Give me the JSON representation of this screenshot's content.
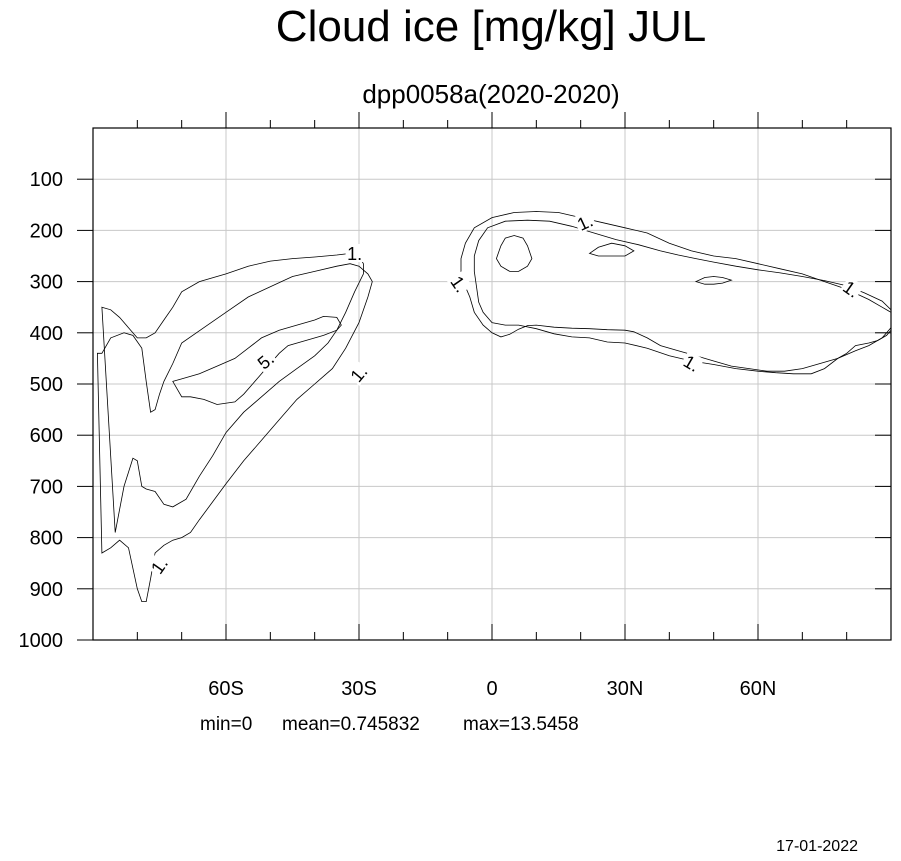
{
  "chart_data": {
    "type": "contour",
    "title": "Cloud ice [mg/kg] JUL",
    "subtitle": "dpp0058a(2020-2020)",
    "xlabel": "",
    "ylabel": "",
    "x_axis": {
      "range": [
        -90,
        90
      ],
      "ticks": [
        {
          "value": -60,
          "label": "60S"
        },
        {
          "value": -30,
          "label": "30S"
        },
        {
          "value": 0,
          "label": "0"
        },
        {
          "value": 30,
          "label": "30N"
        },
        {
          "value": 60,
          "label": "60N"
        }
      ],
      "minor_ticks": [
        -80,
        -70,
        -50,
        -40,
        -20,
        -10,
        10,
        20,
        40,
        50,
        70,
        80
      ]
    },
    "y_axis": {
      "range": [
        0,
        1000
      ],
      "reversed": true,
      "ticks": [
        100,
        200,
        300,
        400,
        500,
        600,
        700,
        800,
        900,
        1000
      ],
      "tick_labels": [
        "100",
        "200",
        "300",
        "400",
        "500",
        "600",
        "700",
        "800",
        "900",
        "1000"
      ]
    },
    "grid": true,
    "stats": {
      "min": "0",
      "mean": "0.745832",
      "max": "13.5458",
      "text_min": "min=0",
      "text_mean": "mean=0.745832",
      "text_max": "max=13.5458"
    },
    "contours": [
      {
        "name": "sh-outer",
        "points": [
          [
            -89,
            440
          ],
          [
            -88,
            440
          ],
          [
            -86,
            410
          ],
          [
            -83,
            400
          ],
          [
            -81,
            405
          ],
          [
            -79,
            430
          ],
          [
            -78,
            495
          ],
          [
            -77,
            555
          ],
          [
            -76,
            550
          ],
          [
            -75,
            520
          ],
          [
            -74,
            495
          ],
          [
            -72,
            460
          ],
          [
            -70,
            420
          ],
          [
            -65,
            390
          ],
          [
            -60,
            360
          ],
          [
            -55,
            330
          ],
          [
            -50,
            310
          ],
          [
            -45,
            290
          ],
          [
            -40,
            280
          ],
          [
            -35,
            270
          ],
          [
            -32,
            265
          ],
          [
            -30,
            270
          ],
          [
            -28,
            285
          ],
          [
            -27,
            300
          ],
          [
            -28,
            330
          ],
          [
            -30,
            380
          ],
          [
            -33,
            430
          ],
          [
            -36,
            470
          ],
          [
            -40,
            500
          ],
          [
            -44,
            530
          ],
          [
            -48,
            570
          ],
          [
            -52,
            610
          ],
          [
            -56,
            650
          ],
          [
            -60,
            695
          ],
          [
            -63,
            730
          ],
          [
            -66,
            765
          ],
          [
            -68,
            790
          ],
          [
            -70,
            800
          ],
          [
            -72,
            805
          ],
          [
            -74,
            815
          ],
          [
            -76,
            830
          ],
          [
            -77,
            880
          ],
          [
            -78,
            925
          ],
          [
            -79,
            925
          ],
          [
            -80,
            900
          ],
          [
            -81,
            860
          ],
          [
            -82,
            820
          ],
          [
            -84,
            805
          ],
          [
            -86,
            820
          ],
          [
            -88,
            830
          ]
        ]
      },
      {
        "name": "sh-inner-1",
        "points": [
          [
            -88,
            350
          ],
          [
            -86,
            355
          ],
          [
            -84,
            370
          ],
          [
            -82,
            390
          ],
          [
            -80,
            410
          ],
          [
            -78,
            410
          ],
          [
            -76,
            400
          ],
          [
            -74,
            375
          ],
          [
            -72,
            350
          ],
          [
            -70,
            320
          ],
          [
            -66,
            300
          ],
          [
            -60,
            285
          ],
          [
            -55,
            270
          ],
          [
            -50,
            260
          ],
          [
            -45,
            255
          ],
          [
            -40,
            252
          ],
          [
            -35,
            248
          ],
          [
            -32,
            245
          ],
          [
            -30,
            250
          ],
          [
            -29,
            265
          ],
          [
            -29,
            285
          ],
          [
            -31,
            320
          ],
          [
            -33,
            360
          ],
          [
            -35,
            395
          ],
          [
            -37,
            420
          ],
          [
            -40,
            445
          ],
          [
            -44,
            470
          ],
          [
            -48,
            495
          ],
          [
            -52,
            525
          ],
          [
            -56,
            555
          ],
          [
            -60,
            595
          ],
          [
            -63,
            640
          ],
          [
            -66,
            680
          ],
          [
            -69,
            725
          ],
          [
            -72,
            740
          ],
          [
            -74,
            735
          ],
          [
            -76,
            710
          ],
          [
            -78,
            705
          ],
          [
            -79,
            700
          ],
          [
            -80,
            650
          ],
          [
            -81,
            645
          ],
          [
            -83,
            700
          ],
          [
            -85,
            790
          ]
        ]
      },
      {
        "name": "sh-inner-5",
        "points": [
          [
            -72,
            495
          ],
          [
            -70,
            490
          ],
          [
            -66,
            480
          ],
          [
            -62,
            465
          ],
          [
            -58,
            450
          ],
          [
            -55,
            430
          ],
          [
            -52,
            410
          ],
          [
            -48,
            395
          ],
          [
            -44,
            385
          ],
          [
            -40,
            375
          ],
          [
            -38,
            368
          ],
          [
            -35,
            370
          ],
          [
            -34,
            385
          ],
          [
            -35,
            395
          ],
          [
            -38,
            405
          ],
          [
            -42,
            415
          ],
          [
            -46,
            425
          ],
          [
            -48,
            440
          ],
          [
            -50,
            460
          ],
          [
            -52,
            480
          ],
          [
            -54,
            500
          ],
          [
            -56,
            520
          ],
          [
            -58,
            535
          ],
          [
            -62,
            540
          ],
          [
            -65,
            530
          ],
          [
            -68,
            525
          ],
          [
            -70,
            525
          ],
          [
            -71,
            510
          ]
        ]
      },
      {
        "name": "nh-outer",
        "points": [
          [
            -7,
            300
          ],
          [
            -7,
            255
          ],
          [
            -6,
            225
          ],
          [
            -4,
            195
          ],
          [
            0,
            175
          ],
          [
            5,
            165
          ],
          [
            10,
            163
          ],
          [
            15,
            165
          ],
          [
            20,
            175
          ],
          [
            25,
            185
          ],
          [
            30,
            195
          ],
          [
            35,
            205
          ],
          [
            40,
            225
          ],
          [
            45,
            240
          ],
          [
            50,
            250
          ],
          [
            55,
            255
          ],
          [
            60,
            265
          ],
          [
            65,
            275
          ],
          [
            70,
            285
          ],
          [
            75,
            300
          ],
          [
            80,
            315
          ],
          [
            85,
            335
          ],
          [
            88,
            350
          ],
          [
            90,
            360
          ],
          [
            90,
            395
          ],
          [
            89,
            405
          ],
          [
            87,
            415
          ],
          [
            85,
            420
          ],
          [
            82,
            425
          ],
          [
            80,
            440
          ],
          [
            78,
            450
          ],
          [
            74,
            460
          ],
          [
            70,
            470
          ],
          [
            66,
            475
          ],
          [
            62,
            475
          ],
          [
            58,
            470
          ],
          [
            54,
            465
          ],
          [
            50,
            455
          ],
          [
            46,
            445
          ],
          [
            42,
            435
          ],
          [
            38,
            425
          ],
          [
            35,
            410
          ],
          [
            32,
            398
          ],
          [
            30,
            395
          ],
          [
            26,
            394
          ],
          [
            22,
            392
          ],
          [
            18,
            391
          ],
          [
            14,
            389
          ],
          [
            10,
            385
          ],
          [
            8,
            386
          ],
          [
            6,
            393
          ],
          [
            4,
            403
          ],
          [
            2,
            408
          ],
          [
            0,
            400
          ],
          [
            -2,
            385
          ],
          [
            -4,
            360
          ],
          [
            -5,
            330
          ],
          [
            -6,
            310
          ]
        ]
      },
      {
        "name": "nh-inner",
        "points": [
          [
            -4,
            280
          ],
          [
            -4,
            250
          ],
          [
            -3,
            220
          ],
          [
            -1,
            195
          ],
          [
            3,
            182
          ],
          [
            8,
            180
          ],
          [
            13,
            182
          ],
          [
            18,
            192
          ],
          [
            23,
            205
          ],
          [
            28,
            218
          ],
          [
            33,
            228
          ],
          [
            38,
            240
          ],
          [
            42,
            248
          ],
          [
            46,
            255
          ],
          [
            50,
            262
          ],
          [
            55,
            270
          ],
          [
            60,
            277
          ],
          [
            65,
            283
          ],
          [
            70,
            290
          ],
          [
            75,
            298
          ],
          [
            80,
            308
          ],
          [
            84,
            322
          ],
          [
            88,
            338
          ],
          [
            90,
            355
          ],
          [
            90,
            390
          ],
          [
            88,
            410
          ],
          [
            85,
            425
          ],
          [
            82,
            435
          ],
          [
            78,
            450
          ],
          [
            75,
            470
          ],
          [
            72,
            480
          ],
          [
            68,
            480
          ],
          [
            64,
            478
          ],
          [
            60,
            475
          ],
          [
            55,
            470
          ],
          [
            50,
            462
          ],
          [
            45,
            455
          ],
          [
            40,
            445
          ],
          [
            35,
            430
          ],
          [
            30,
            420
          ],
          [
            26,
            418
          ],
          [
            22,
            410
          ],
          [
            18,
            408
          ],
          [
            14,
            402
          ],
          [
            10,
            392
          ],
          [
            6,
            385
          ],
          [
            3,
            385
          ],
          [
            0,
            380
          ],
          [
            -2,
            360
          ],
          [
            -3,
            340
          ],
          [
            -3.5,
            310
          ]
        ]
      },
      {
        "name": "nh-small-center",
        "points": [
          [
            1,
            255
          ],
          [
            2,
            230
          ],
          [
            3,
            215
          ],
          [
            5,
            210
          ],
          [
            7,
            215
          ],
          [
            8,
            230
          ],
          [
            9,
            255
          ],
          [
            8,
            270
          ],
          [
            6,
            280
          ],
          [
            4,
            280
          ],
          [
            2,
            270
          ]
        ]
      },
      {
        "name": "nh-small-right",
        "points": [
          [
            22,
            245
          ],
          [
            24,
            233
          ],
          [
            27,
            225
          ],
          [
            30,
            230
          ],
          [
            32,
            240
          ],
          [
            30,
            250
          ],
          [
            27,
            250
          ],
          [
            24,
            250
          ]
        ]
      },
      {
        "name": "nh-small-far",
        "points": [
          [
            46,
            300
          ],
          [
            48,
            292
          ],
          [
            50,
            290
          ],
          [
            52,
            292
          ],
          [
            54,
            297
          ],
          [
            52,
            303
          ],
          [
            50,
            305
          ],
          [
            48,
            305
          ]
        ]
      }
    ],
    "contour_labels": [
      {
        "text": "1.",
        "x": -31,
        "y": 246,
        "rotate": 0
      },
      {
        "text": "5.",
        "x": -51,
        "y": 455,
        "rotate": -40
      },
      {
        "text": "1.",
        "x": -30,
        "y": 480,
        "rotate": -50
      },
      {
        "text": "1.",
        "x": -75,
        "y": 855,
        "rotate": -55
      },
      {
        "text": "1.",
        "x": -7.5,
        "y": 305,
        "rotate": 55
      },
      {
        "text": "1.",
        "x": 21,
        "y": 185,
        "rotate": -25
      },
      {
        "text": "1.",
        "x": 45,
        "y": 460,
        "rotate": 30
      },
      {
        "text": "1.",
        "x": 81,
        "y": 315,
        "rotate": 35
      }
    ]
  },
  "footer": {
    "date": "17-01-2022"
  }
}
